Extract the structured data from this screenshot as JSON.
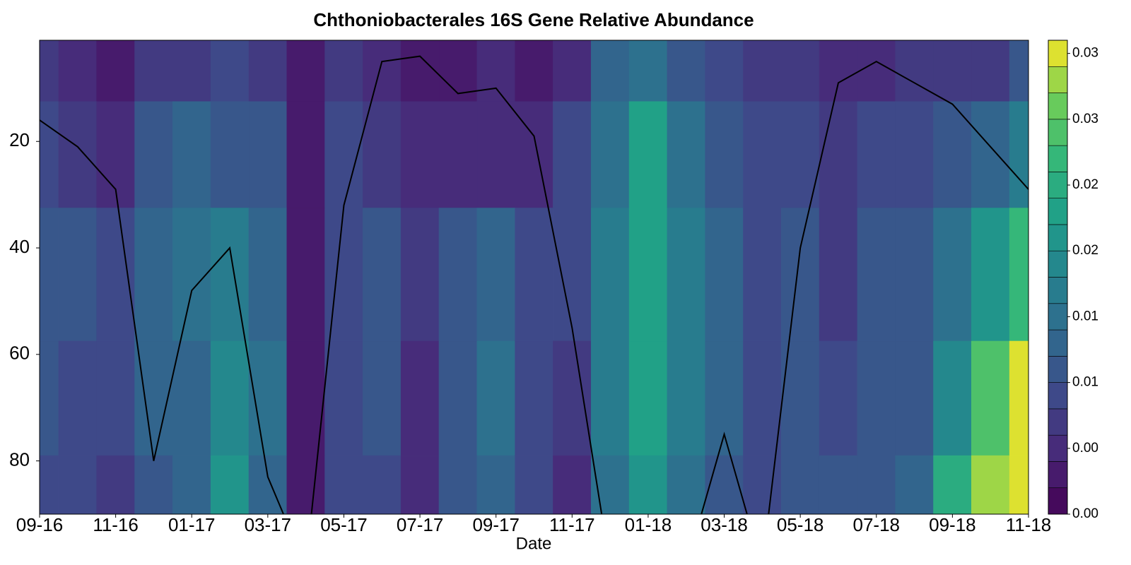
{
  "chart_data": {
    "type": "contour",
    "title": "Chthoniobacterales 16S Gene Relative Abundance",
    "x_label": "Date",
    "x": [
      "09-16",
      "10-16",
      "11-16",
      "12-16",
      "01-17",
      "02-17",
      "03-17",
      "04-17",
      "05-17",
      "06-17",
      "07-17",
      "08-17",
      "09-17",
      "10-17",
      "11-17",
      "12-17",
      "01-18",
      "02-18",
      "03-18",
      "04-18",
      "05-18",
      "06-18",
      "07-18",
      "08-18",
      "09-18",
      "10-18",
      "11-18"
    ],
    "xlim": [
      "09-16",
      "11-18"
    ],
    "xticks": [
      "09-16",
      "11-16",
      "01-17",
      "03-17",
      "05-17",
      "07-17",
      "09-17",
      "11-17",
      "01-18",
      "03-18",
      "05-18",
      "07-18",
      "09-18",
      "11-18"
    ],
    "depths": [
      5,
      20,
      45,
      70,
      88
    ],
    "ylim": [
      1,
      90
    ],
    "yticks": [
      20,
      40,
      60,
      80
    ],
    "y_inverted": true,
    "z": [
      [
        0.006,
        0.004,
        0.003,
        0.006,
        0.006,
        0.008,
        0.007,
        0.002,
        0.006,
        0.004,
        0.003,
        0.003,
        0.004,
        0.003,
        0.004,
        0.012,
        0.014,
        0.01,
        0.008,
        0.006,
        0.006,
        0.004,
        0.005,
        0.006,
        0.007,
        0.007,
        0.01
      ],
      [
        0.009,
        0.006,
        0.004,
        0.01,
        0.012,
        0.011,
        0.01,
        0.003,
        0.008,
        0.007,
        0.005,
        0.005,
        0.005,
        0.004,
        0.008,
        0.014,
        0.022,
        0.014,
        0.01,
        0.008,
        0.009,
        0.006,
        0.008,
        0.008,
        0.01,
        0.012,
        0.016
      ],
      [
        0.01,
        0.01,
        0.009,
        0.012,
        0.014,
        0.016,
        0.012,
        0.003,
        0.009,
        0.01,
        0.006,
        0.01,
        0.012,
        0.008,
        0.009,
        0.016,
        0.022,
        0.016,
        0.012,
        0.009,
        0.01,
        0.006,
        0.01,
        0.01,
        0.014,
        0.02,
        0.026
      ],
      [
        0.01,
        0.009,
        0.008,
        0.012,
        0.013,
        0.018,
        0.014,
        0.003,
        0.009,
        0.01,
        0.005,
        0.011,
        0.014,
        0.009,
        0.007,
        0.016,
        0.022,
        0.016,
        0.012,
        0.008,
        0.01,
        0.009,
        0.011,
        0.011,
        0.018,
        0.028,
        0.035
      ],
      [
        0.009,
        0.008,
        0.007,
        0.01,
        0.012,
        0.02,
        0.013,
        0.003,
        0.009,
        0.009,
        0.004,
        0.01,
        0.012,
        0.008,
        0.005,
        0.015,
        0.02,
        0.015,
        0.011,
        0.008,
        0.01,
        0.01,
        0.011,
        0.012,
        0.024,
        0.032,
        0.034
      ]
    ],
    "colormap": "viridis",
    "zlim": [
      0,
      0.036
    ],
    "level_step": 0.002,
    "zticks": [
      {
        "value": 0,
        "label": "0.00"
      },
      {
        "value": 0.005,
        "label": "0.00"
      },
      {
        "value": 0.01,
        "label": "0.01"
      },
      {
        "value": 0.015,
        "label": "0.01"
      },
      {
        "value": 0.02,
        "label": "0.02"
      },
      {
        "value": 0.025,
        "label": "0.02"
      },
      {
        "value": 0.03,
        "label": "0.03"
      },
      {
        "value": 0.035,
        "label": "0.03"
      }
    ],
    "line": {
      "color": "#000000",
      "values": [
        16,
        21,
        29,
        80,
        48,
        40,
        83,
        100,
        32,
        5,
        4,
        11,
        10,
        19,
        55,
        100,
        100,
        100,
        75,
        100,
        40,
        9,
        5,
        9,
        13,
        21,
        29
      ]
    }
  }
}
